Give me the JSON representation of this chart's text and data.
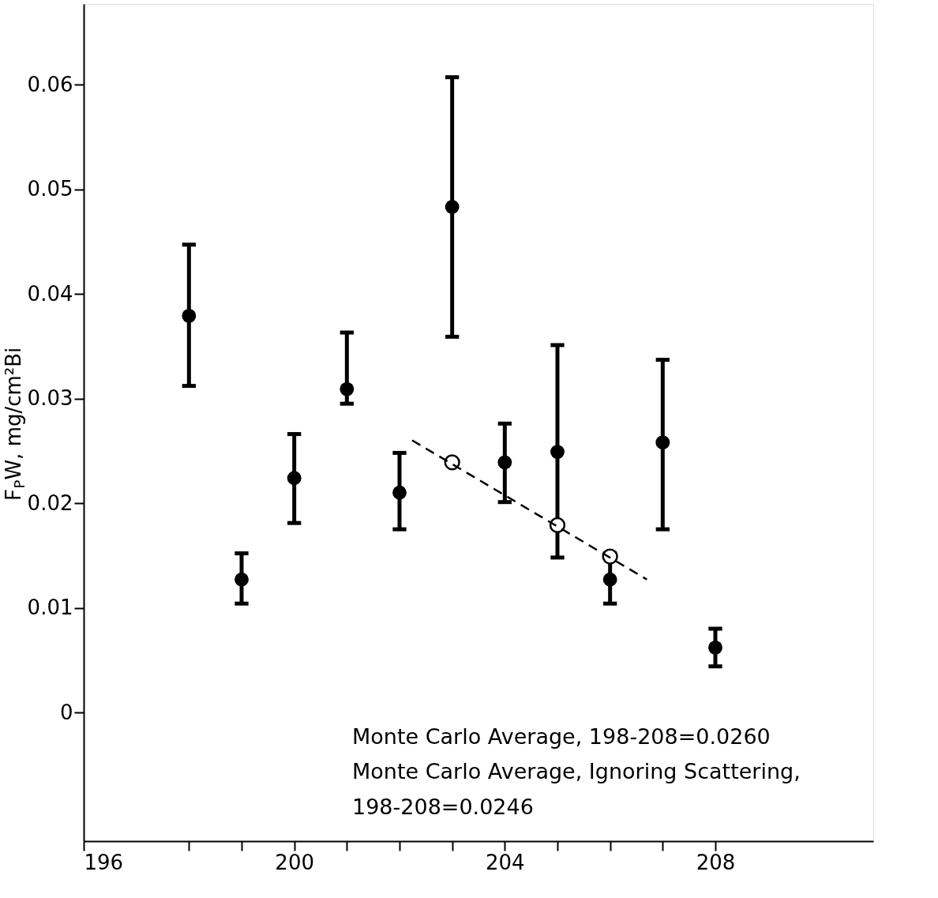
{
  "chart_data": {
    "type": "scatter",
    "ylabel": "F$_{P}$W, mg/cm²Bi",
    "xlim": [
      196,
      211
    ],
    "ylim": [
      -0.0123,
      0.0677
    ],
    "xticks": [
      196,
      {
        "value": 198,
        "label": null
      },
      {
        "value": 199,
        "label": null
      },
      200,
      {
        "value": 201,
        "label": null
      },
      {
        "value": 202,
        "label": null
      },
      {
        "value": 203,
        "label": null
      },
      204,
      {
        "value": 205,
        "label": null
      },
      {
        "value": 206,
        "label": null
      },
      {
        "value": 207,
        "label": null
      },
      208
    ],
    "yticks": [
      0,
      0.01,
      0.02,
      0.03,
      0.04,
      0.05,
      0.06
    ],
    "grid": false,
    "series": [
      {
        "marker": "circle",
        "color": "#000000",
        "x": [
          198,
          199,
          200,
          201,
          202,
          203,
          204,
          205,
          206,
          207,
          208
        ],
        "values": [
          0.0379,
          0.0127,
          0.0224,
          0.0309,
          0.021,
          0.0483,
          0.0239,
          0.0249,
          0.0127,
          0.0258,
          0.0062
        ],
        "errors": [
          [
            0.0312,
            0.0447
          ],
          [
            0.0104,
            0.0152
          ],
          [
            0.0181,
            0.0266
          ],
          [
            0.0295,
            0.0363
          ],
          [
            0.0175,
            0.0248
          ],
          [
            0.0359,
            0.0607
          ],
          [
            0.0201,
            0.0276
          ],
          [
            0.0148,
            0.0351
          ],
          [
            0.0104,
            0.0152
          ],
          [
            0.0175,
            0.0337
          ],
          [
            0.0044,
            0.008
          ]
        ]
      },
      {
        "marker": "circle",
        "color": "#000000",
        "x": [
          203,
          205,
          206
        ],
        "values": [
          0.0239,
          0.0179,
          0.0149
        ]
      },
      {
        "type": "line",
        "line_style": "dashed",
        "color": "#000000",
        "x": [
          202.24,
          206.7
        ],
        "values": [
          0.026,
          0.0127
        ]
      }
    ],
    "annotations": [
      "Monte Carlo Average, 198-208=0.0260",
      "Monte Carlo Average, Ignoring Scattering,",
      "198-208=0.0246"
    ]
  }
}
